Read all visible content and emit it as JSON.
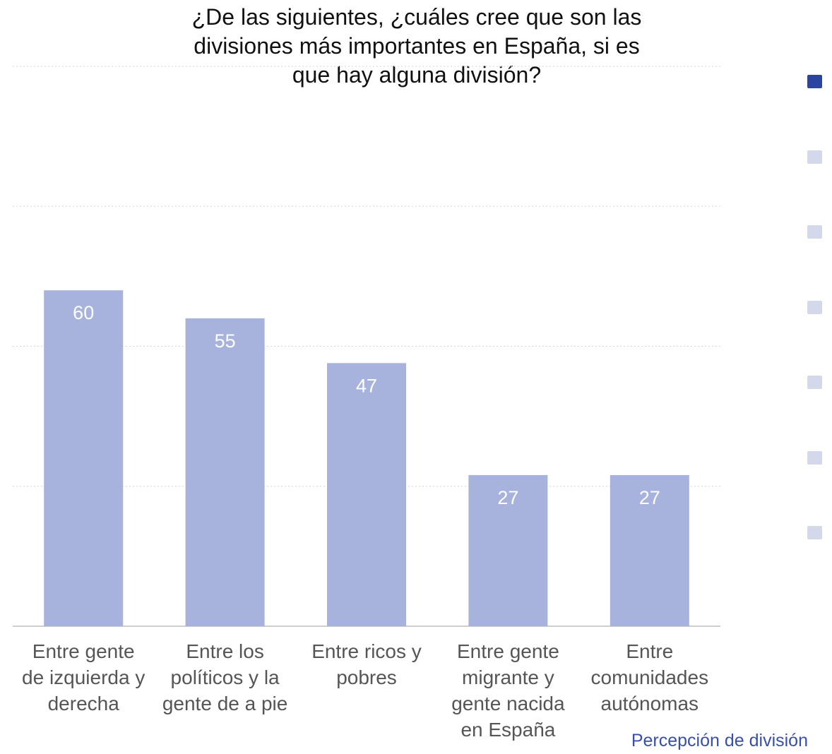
{
  "chart_data": {
    "type": "bar",
    "title": "¿De las siguientes, ¿cuáles cree que son las divisiones más importantes en España, si es que hay alguna división?",
    "title_lines": [
      "¿De las siguientes, ¿cuáles cree que son las",
      "divisiones más importantes en España, si es",
      "que hay alguna división?"
    ],
    "categories": [
      [
        "Entre gente",
        "de izquierda y",
        "derecha"
      ],
      [
        "Entre los",
        "políticos y la",
        "gente de a pie"
      ],
      [
        "Entre ricos y",
        "pobres"
      ],
      [
        "Entre gente",
        "migrante y",
        "gente nacida",
        "en España"
      ],
      [
        "Entre",
        "comunidades",
        "autónomas"
      ]
    ],
    "series": [
      {
        "name": "Percepción de división",
        "values": [
          60,
          55,
          47,
          27,
          27
        ]
      }
    ],
    "ylim": [
      0,
      100
    ],
    "grid": true,
    "grid_values": [
      25,
      50,
      75,
      100
    ],
    "legend_position": "bottom-right",
    "colors": {
      "bar": "#a7b3dc",
      "legend_active": "#2a44a0",
      "legend_inactive": "#d3d8ea",
      "legend_text": "#3a4fa8"
    }
  },
  "legend": {
    "label": "Percepción de división",
    "swatches": [
      "active",
      "inactive",
      "inactive",
      "inactive",
      "inactive",
      "inactive",
      "inactive"
    ]
  }
}
